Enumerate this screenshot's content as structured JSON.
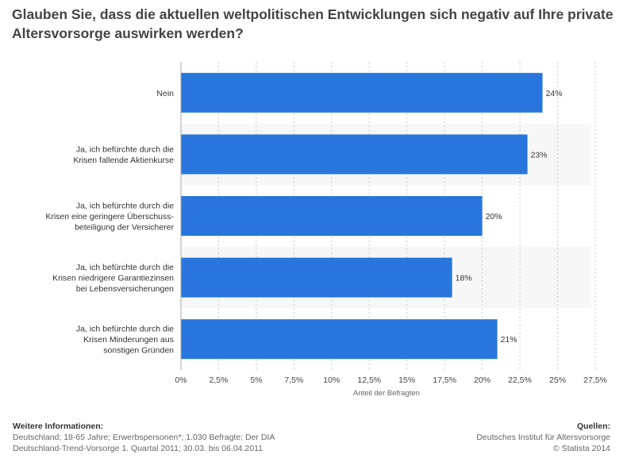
{
  "chart_data": {
    "type": "bar",
    "orientation": "horizontal",
    "title": "Glauben Sie, dass die aktuellen weltpolitischen Entwicklungen sich negativ auf Ihre private Altersvorsorge auswirken werden?",
    "categories": [
      [
        "Nein"
      ],
      [
        "Ja, ich befürchte durch die",
        "Krisen fallende Aktienkurse"
      ],
      [
        "Ja, ich befürchte durch die",
        "Krisen eine geringere Überschuss-",
        "beteiligung der Versicherer"
      ],
      [
        "Ja, ich befürchte durch die",
        "Krisen niedrigere Garantiezinsen",
        "bei Lebensversicherungen"
      ],
      [
        "Ja, ich befürchte durch die",
        "Krisen Minderungen aus",
        "sonstigen Gründen"
      ]
    ],
    "values": [
      24,
      23,
      20,
      18,
      21
    ],
    "value_labels": [
      "24%",
      "23%",
      "20%",
      "18%",
      "21%"
    ],
    "xlabel": "Anteil der Befragten",
    "ylabel": "",
    "xlim": [
      0,
      27.5
    ],
    "ticks": [
      0,
      2.5,
      5,
      7.5,
      10,
      12.5,
      15,
      17.5,
      20,
      22.5,
      25,
      27.5
    ],
    "tick_labels": [
      "0%",
      "2,5%",
      "5%",
      "7,5%",
      "10%",
      "12,5%",
      "15%",
      "17,5%",
      "20%",
      "22,5%",
      "25%",
      "27,5%"
    ],
    "grid": "vertical-dashed",
    "bar_color": "#2876dd",
    "band_color": "#f7f7f7"
  },
  "footer": {
    "info_title": "Weitere Informationen:",
    "info_line1": "Deutschland; 18-65 Jahre; Erwerbspersonen*; 1.030 Befragte; Der DIA",
    "info_line2": "Deutschland-Trend-Vorsorge 1. Quartal 2011; 30.03. bis 06.04.2011",
    "sources_title": "Quellen:",
    "sources_line1": "Deutsches Institut für Altersvorsorge",
    "sources_line2": "© Statista 2014"
  }
}
